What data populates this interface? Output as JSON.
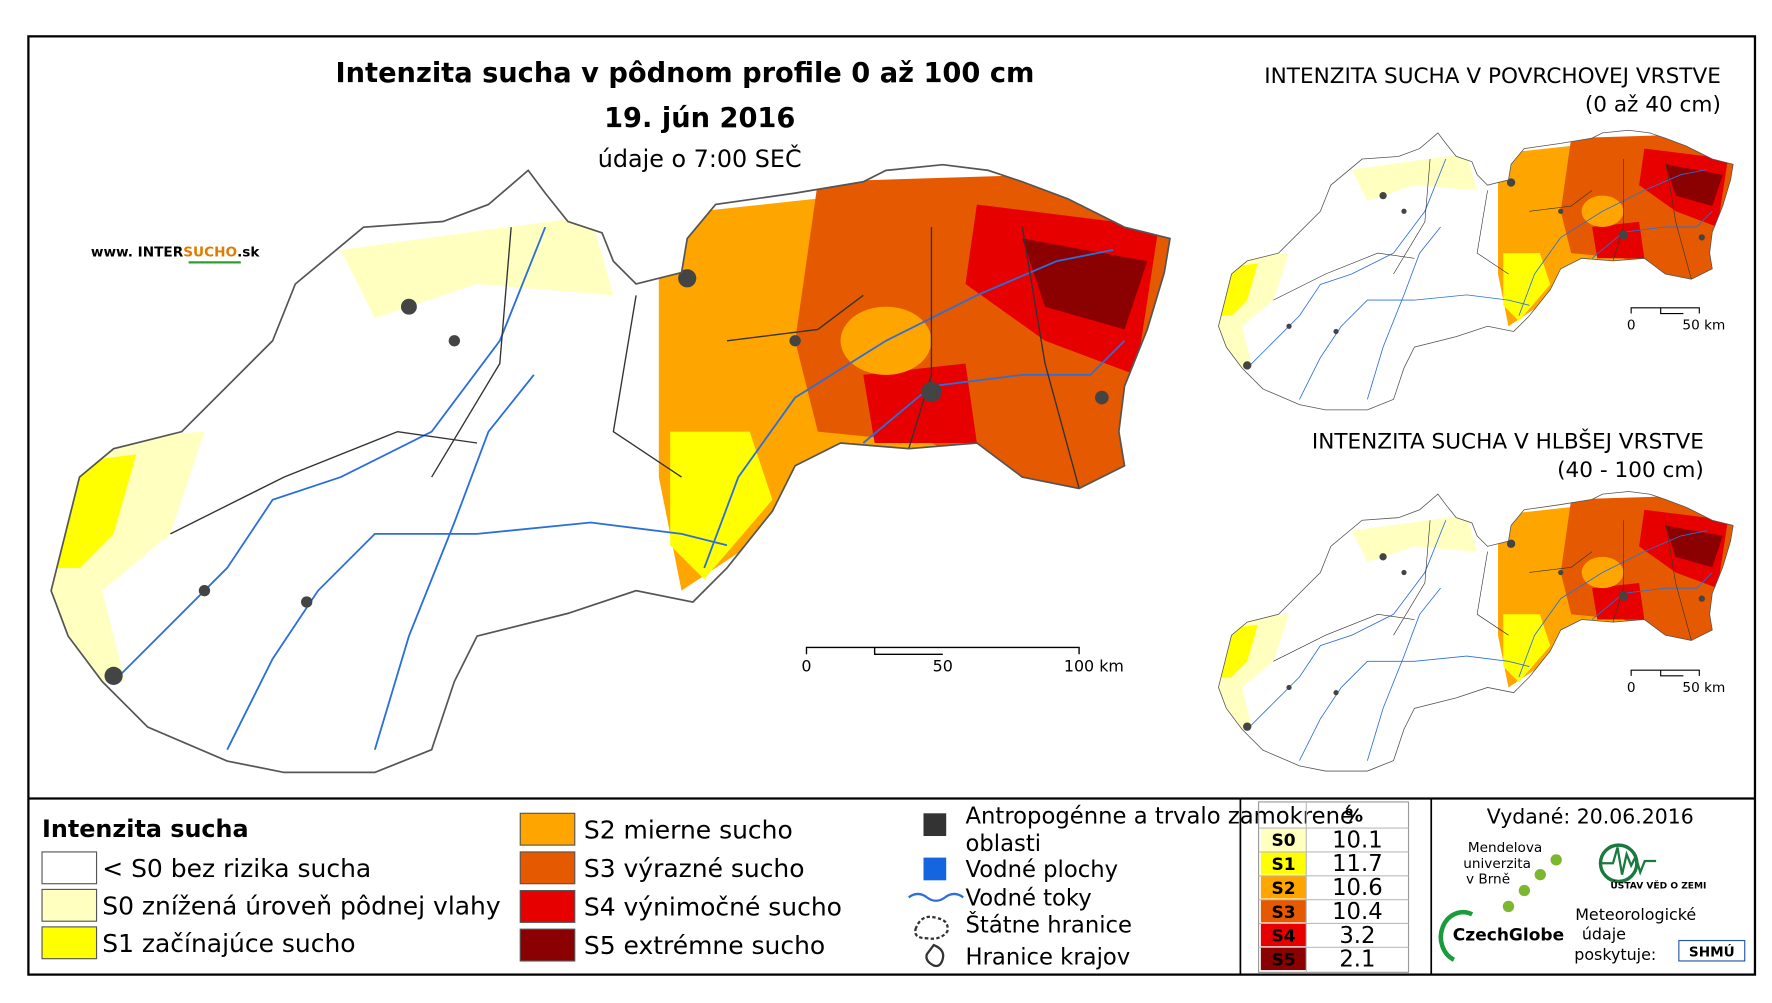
{
  "title": {
    "main": "Intenzita sucha v pôdnom profile 0 až 100 cm",
    "date": "19. jún 2016",
    "time": "údaje o 7:00 SEČ"
  },
  "website": {
    "prefix": "www. INTER",
    "highlight": "SUCHO",
    "suffix": ".sk"
  },
  "main_map": {
    "scale": [
      "0",
      "50",
      "100 km"
    ]
  },
  "insets": [
    {
      "title": "INTENZITA SUCHA V POVRCHOVEJ VRSTVE",
      "subtitle": "(0 až 40 cm)",
      "scale": [
        "0",
        "50 km"
      ]
    },
    {
      "title": "INTENZITA SUCHA V HLBŠEJ VRSTVE",
      "subtitle": "(40 - 100 cm)",
      "scale": [
        "0",
        "50 km"
      ]
    }
  ],
  "legend": {
    "title": "Intenzita sucha",
    "items": [
      {
        "label": "< S0 bez rizika sucha",
        "color": "#ffffff"
      },
      {
        "label": "S0 znížená úroveň pôdnej vlahy",
        "color": "#ffffc0"
      },
      {
        "label": "S1 začínajúce sucho",
        "color": "#ffff00"
      },
      {
        "label": "S2 mierne sucho",
        "color": "#ffa500"
      },
      {
        "label": "S3 výrazné sucho",
        "color": "#e55a00"
      },
      {
        "label": "S4 výnimočné sucho",
        "color": "#e60000"
      },
      {
        "label": "S5 extrémne sucho",
        "color": "#8b0000"
      }
    ]
  },
  "symbols": {
    "items": [
      "Antropogénne a trvalo zamokrené oblasti",
      "Vodné plochy",
      "Vodné toky",
      "Štátne hranice",
      "Hranice krajov"
    ]
  },
  "table": {
    "header": "%",
    "rows": [
      [
        "S0",
        "10.1"
      ],
      [
        "S1",
        "11.7"
      ],
      [
        "S2",
        "10.6"
      ],
      [
        "S3",
        "10.4"
      ],
      [
        "S4",
        "3.2"
      ],
      [
        "S5",
        "2.1"
      ]
    ]
  },
  "issued": "Vydané: 20.06.2016",
  "logos": {
    "mendel": [
      "Mendelova",
      "univerzita",
      "v Brně"
    ],
    "czechglobe": "CzechGlobe",
    "uvz": "ÚSTAV VĚD O ZEMI",
    "provider": [
      "Meteorologické",
      "údaje",
      "poskytuje:"
    ],
    "shmu": "SHMÚ"
  }
}
